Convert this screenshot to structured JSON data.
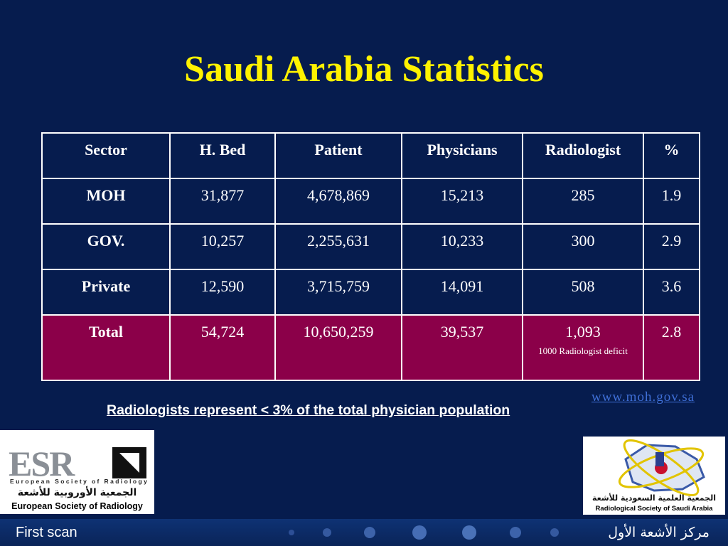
{
  "title": "Saudi Arabia Statistics",
  "table": {
    "headers": [
      "Sector",
      "H. Bed",
      "Patient",
      "Physicians",
      "Radiologist",
      "%"
    ],
    "rows": [
      [
        "MOH",
        "31,877",
        "4,678,869",
        "15,213",
        "285",
        "1.9"
      ],
      [
        "GOV.",
        "10,257",
        "2,255,631",
        "10,233",
        "300",
        "2.9"
      ],
      [
        "Private",
        "12,590",
        "3,715,759",
        "14,091",
        "508",
        "3.6"
      ]
    ],
    "total": {
      "label": "Total",
      "h_bed": "54,724",
      "patient": "10,650,259",
      "physicians": "39,537",
      "radiologist": "1,093",
      "note": "1000 Radiologist deficit",
      "percent": "2.8"
    }
  },
  "source_link": "www.moh.gov.sa",
  "summary": "Radiologists represent < 3% of the total physician population",
  "logo_left": {
    "brand": "ESR",
    "small_text": "European Society of Radiology",
    "arabic": "الجمعية الأوروبية للأشعة",
    "english": "European Society of Radiology"
  },
  "logo_right": {
    "arabic": "الجمعية العلمية السعودية للأشعة",
    "english": "Radiological Society of Saudi Arabia"
  },
  "footer": {
    "left": "First scan",
    "right": "مركز الأشعة الأول"
  },
  "colors": {
    "background": "#061c4e",
    "title": "#fff200",
    "total_row": "#8b0049",
    "link": "#3f6fd6"
  }
}
